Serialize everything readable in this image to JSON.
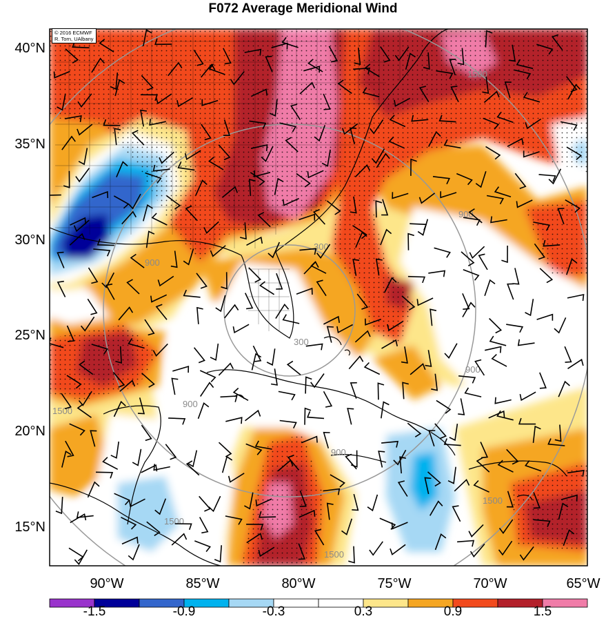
{
  "title": "F072 Average Meridional Wind",
  "credit": {
    "line1": "© 2016 ECMWF",
    "line2": "R. Torn, UAlbany"
  },
  "map": {
    "lon_range": [
      -93,
      -65
    ],
    "lat_range": [
      13,
      41
    ],
    "lat_labels": [
      "40°N",
      "35°N",
      "30°N",
      "25°N",
      "20°N",
      "15°N"
    ],
    "lon_labels": [
      "90°W",
      "85°W",
      "80°W",
      "75°W",
      "70°W",
      "65°W"
    ],
    "range_ring_labels": [
      "300",
      "300",
      "900",
      "900",
      "900",
      "900",
      "900",
      "1500",
      "1500",
      "1500",
      "1500",
      "1500"
    ],
    "colors": {
      "land_lines": "#000000",
      "range_rings": "#999999"
    }
  },
  "colorbar": {
    "colors": [
      "#9933cc",
      "#000099",
      "#3366cc",
      "#00b2ee",
      "#a6d8f4",
      "#ffffff",
      "#ffffff",
      "#fde68a",
      "#f5a623",
      "#f24a1d",
      "#b3202a",
      "#f07ca8"
    ],
    "labels": [
      "-1.5",
      "-0.9",
      "-0.3",
      "0.3",
      "0.9",
      "1.5"
    ]
  }
}
